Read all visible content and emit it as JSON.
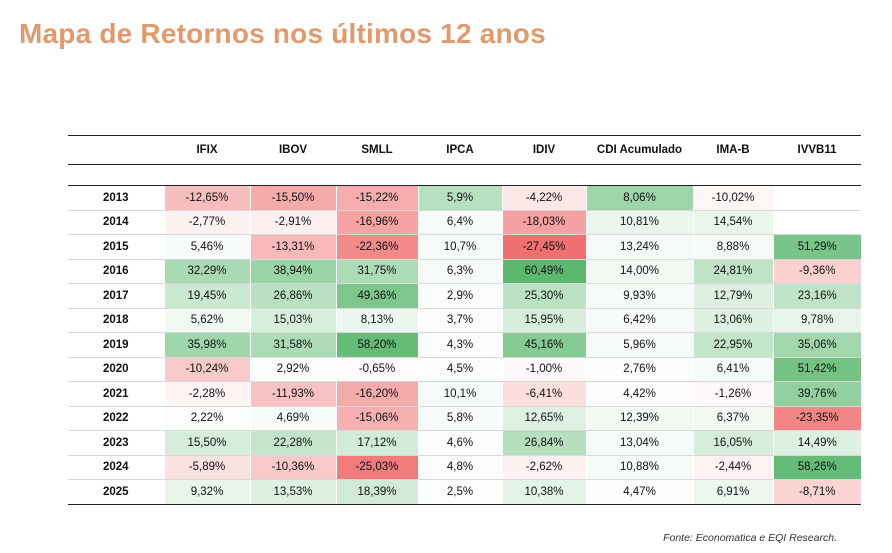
{
  "page": {
    "title": "Mapa de Retornos nos últimos 12 anos",
    "source": "Fonte: Economatica e EQI Research."
  },
  "colors": {
    "title": "#e09a6c",
    "positive": "#5cb86f",
    "negative": "#f07070",
    "neutral": "#ffffff"
  },
  "chart_data": {
    "type": "table",
    "title": "Mapa de Retornos nos últimos 12 anos",
    "columns": [
      "IFIX",
      "IBOV",
      "SMLL",
      "IPCA",
      "IDIV",
      "CDI Acumulado",
      "IMA-B",
      "IVVB11"
    ],
    "rows": [
      {
        "year": "2013",
        "values": [
          "-12,65%",
          "-15,50%",
          "-15,22%",
          "5,9%",
          "-4,22%",
          "8,06%",
          "-10,02%",
          ""
        ],
        "shades": [
          -0.46,
          -0.59,
          -0.58,
          0.44,
          -0.17,
          0.6,
          -0.07,
          null
        ]
      },
      {
        "year": "2014",
        "values": [
          "-2,77%",
          "-2,91%",
          "-16,96%",
          "6,4%",
          "-18,03%",
          "10,81%",
          "14,54%",
          ""
        ],
        "shades": [
          -0.1,
          -0.11,
          -0.64,
          0.05,
          -0.66,
          0.12,
          0.13,
          null
        ]
      },
      {
        "year": "2015",
        "values": [
          "5,46%",
          "-13,31%",
          "-22,36%",
          "10,7%",
          "-27,45%",
          "13,24%",
          "8,88%",
          "51,29%"
        ],
        "shades": [
          0.04,
          -0.49,
          -0.82,
          0.06,
          -1.0,
          0.07,
          0.06,
          0.82
        ]
      },
      {
        "year": "2016",
        "values": [
          "32,29%",
          "38,94%",
          "31,75%",
          "6,3%",
          "60,49%",
          "14,00%",
          "24,81%",
          "-9,36%"
        ],
        "shades": [
          0.52,
          0.62,
          0.51,
          0.05,
          1.0,
          0.08,
          0.4,
          -0.33
        ]
      },
      {
        "year": "2017",
        "values": [
          "19,45%",
          "26,86%",
          "49,36%",
          "2,9%",
          "25,30%",
          "9,93%",
          "12,79%",
          "23,16%"
        ],
        "shades": [
          0.32,
          0.43,
          0.8,
          0.03,
          0.41,
          0.06,
          0.21,
          0.38
        ]
      },
      {
        "year": "2018",
        "values": [
          "5,62%",
          "15,03%",
          "8,13%",
          "3,7%",
          "15,95%",
          "6,42%",
          "13,06%",
          "9,78%"
        ],
        "shades": [
          0.08,
          0.24,
          0.12,
          0.03,
          0.26,
          0.05,
          0.21,
          0.15
        ]
      },
      {
        "year": "2019",
        "values": [
          "35,98%",
          "31,58%",
          "58,20%",
          "4,3%",
          "45,16%",
          "5,96%",
          "22,95%",
          "35,06%"
        ],
        "shades": [
          0.58,
          0.51,
          0.95,
          0.03,
          0.74,
          0.05,
          0.37,
          0.57
        ]
      },
      {
        "year": "2020",
        "values": [
          "-10,24%",
          "2,92%",
          "-0,65%",
          "4,5%",
          "-1,00%",
          "2,76%",
          "6,41%",
          "51,42%"
        ],
        "shades": [
          -0.37,
          0.03,
          -0.03,
          0.03,
          -0.04,
          0.03,
          0.06,
          0.85
        ]
      },
      {
        "year": "2021",
        "values": [
          "-2,28%",
          "-11,93%",
          "-16,20%",
          "10,1%",
          "-6,41%",
          "4,42%",
          "-1,26%",
          "39,76%"
        ],
        "shades": [
          -0.08,
          -0.43,
          -0.59,
          0.06,
          -0.23,
          0.03,
          -0.05,
          0.66
        ]
      },
      {
        "year": "2022",
        "values": [
          "2,22%",
          "4,69%",
          "-15,06%",
          "5,8%",
          "12,65%",
          "12,39%",
          "6,37%",
          "-23,35%"
        ],
        "shades": [
          0.02,
          0.06,
          -0.55,
          0.04,
          0.2,
          0.08,
          0.08,
          -0.85
        ]
      },
      {
        "year": "2023",
        "values": [
          "15,50%",
          "22,28%",
          "17,12%",
          "4,6%",
          "26,84%",
          "13,04%",
          "16,05%",
          "14,49%"
        ],
        "shades": [
          0.25,
          0.36,
          0.28,
          0.03,
          0.45,
          0.07,
          0.26,
          0.21
        ]
      },
      {
        "year": "2024",
        "values": [
          "-5,89%",
          "-10,36%",
          "-25,03%",
          "4,8%",
          "-2,62%",
          "10,88%",
          "-2,44%",
          "58,26%"
        ],
        "shades": [
          -0.21,
          -0.38,
          -0.92,
          0.03,
          -0.1,
          0.07,
          -0.09,
          0.95
        ]
      },
      {
        "year": "2025",
        "values": [
          "9,32%",
          "13,53%",
          "18,39%",
          "2,5%",
          "10,38%",
          "4,47%",
          "6,91%",
          "-8,71%"
        ],
        "shades": [
          0.14,
          0.21,
          0.29,
          0.02,
          0.17,
          0.03,
          0.11,
          -0.31
        ]
      }
    ]
  }
}
